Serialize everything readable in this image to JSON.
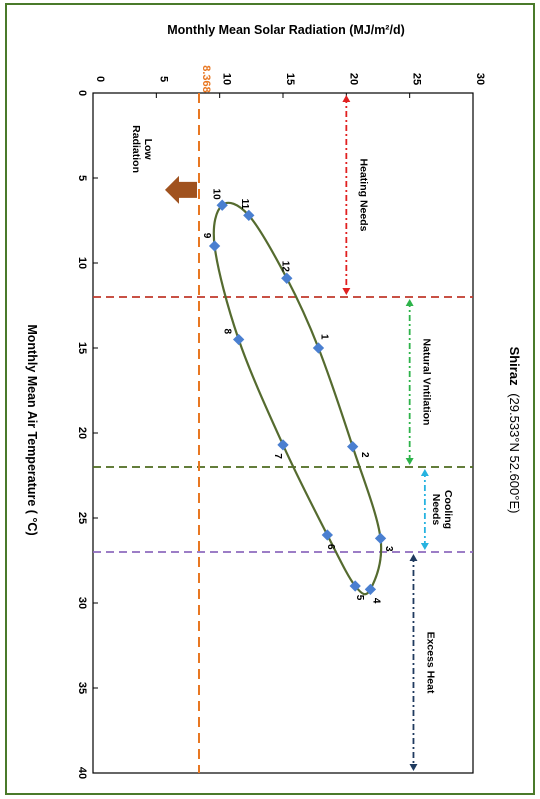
{
  "chart_data": {
    "type": "scatter",
    "title": "Shiraz",
    "subtitle": "(29.533°N 52.600°E)",
    "xlabel": "Monthly Mean Air Temperature ( °C)",
    "ylabel": "Monthly Mean Solar Radiation (MJ/m²/d)",
    "xlim": [
      0,
      40
    ],
    "ylim": [
      0,
      30
    ],
    "x_ticks": [
      "0",
      "5",
      "10",
      "15",
      "20",
      "25",
      "30",
      "35",
      "40"
    ],
    "y_ticks": [
      "0",
      "5",
      "10",
      "15",
      "20",
      "25",
      "30"
    ],
    "grid": false,
    "points": [
      {
        "label": "1",
        "x": 15.0,
        "y": 17.8
      },
      {
        "label": "2",
        "x": 20.8,
        "y": 20.5
      },
      {
        "label": "3",
        "x": 26.2,
        "y": 22.7
      },
      {
        "label": "4",
        "x": 29.2,
        "y": 21.9
      },
      {
        "label": "5",
        "x": 29.0,
        "y": 20.7
      },
      {
        "label": "6",
        "x": 26.0,
        "y": 18.5
      },
      {
        "label": "7",
        "x": 20.7,
        "y": 15.0
      },
      {
        "label": "8",
        "x": 14.5,
        "y": 11.5
      },
      {
        "label": "9",
        "x": 9.0,
        "y": 9.6
      },
      {
        "label": "10",
        "x": 6.6,
        "y": 10.2
      },
      {
        "label": "11",
        "x": 7.2,
        "y": 12.3
      },
      {
        "label": "12",
        "x": 10.9,
        "y": 15.3
      }
    ],
    "threshold_line": {
      "y": 8.368,
      "label": "8.368",
      "color": "#e87722"
    },
    "vertical_lines": [
      {
        "x": 12,
        "color": "#c0392b"
      },
      {
        "x": 22,
        "color": "#4d6b1f"
      },
      {
        "x": 27,
        "color": "#8e6bbf"
      }
    ],
    "zones": [
      {
        "label": "Heating Needs",
        "x_from": 0,
        "x_to": 12,
        "y": 20,
        "color": "#e02020"
      },
      {
        "label": "Natural  Vntilation",
        "x_from": 12,
        "x_to": 22,
        "y": 25,
        "color": "#2db34a"
      },
      {
        "label": "Cooling Needs",
        "x_from": 22,
        "x_to": 27,
        "y": 26.2,
        "color": "#27b3e0"
      },
      {
        "label": "Excess Heat",
        "x_from": 27,
        "x_to": 40,
        "y": 25.3,
        "color": "#1f3a5f"
      }
    ],
    "low_radiation": {
      "label": "Low Radiation",
      "color": "#a0521f"
    },
    "marker_color": "#4a7fd0",
    "curve_color": "#556b2f"
  }
}
